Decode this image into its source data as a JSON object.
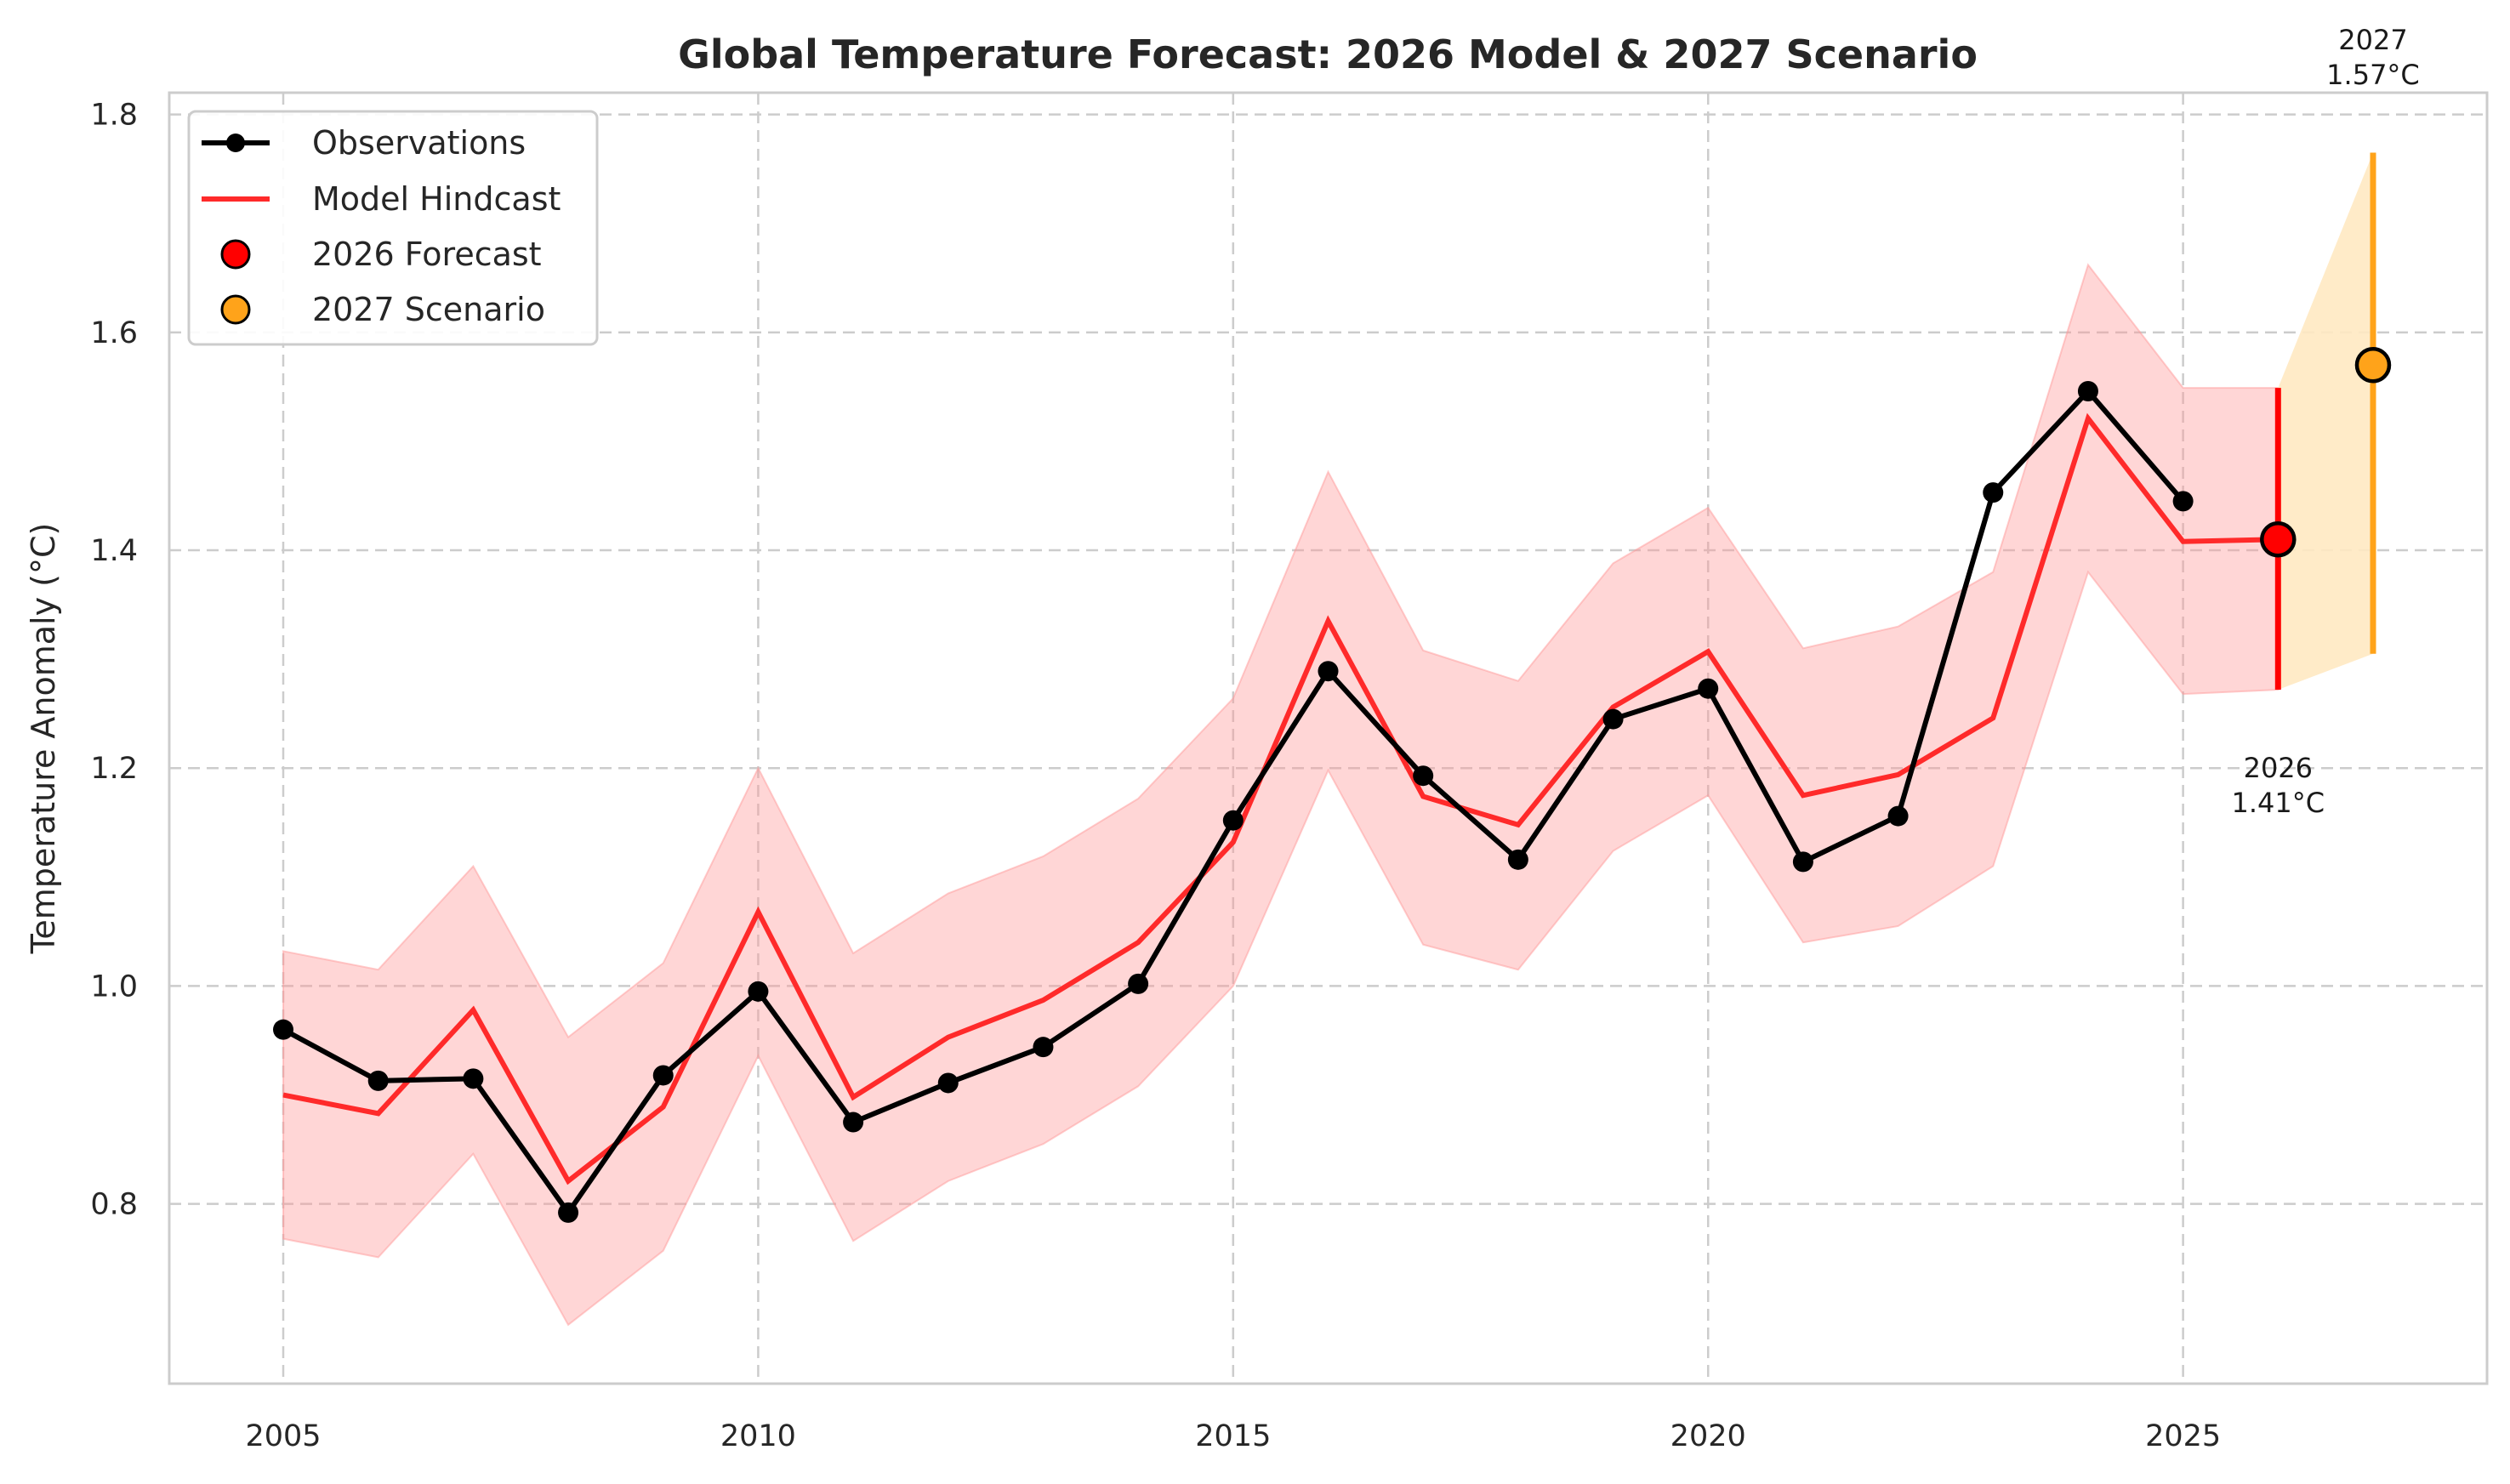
{
  "chart_data": {
    "type": "line",
    "title": "Global Temperature Forecast: 2026 Model & 2027 Scenario",
    "xlabel": "",
    "ylabel": "Temperature Anomaly (°C)",
    "xlim": [
      2003.8,
      2028.2
    ],
    "ylim": [
      0.635,
      1.82
    ],
    "xticks": [
      2005,
      2010,
      2015,
      2020,
      2025
    ],
    "yticks": [
      0.8,
      1.0,
      1.2,
      1.4,
      1.6,
      1.8
    ],
    "ytick_labels": [
      "0.8",
      "1.0",
      "1.2",
      "1.4",
      "1.6",
      "1.8"
    ],
    "grid": true,
    "legend_position": "upper-left",
    "x": [
      2005,
      2006,
      2007,
      2008,
      2009,
      2010,
      2011,
      2012,
      2013,
      2014,
      2015,
      2016,
      2017,
      2018,
      2019,
      2020,
      2021,
      2022,
      2023,
      2024,
      2025
    ],
    "series": [
      {
        "name": "Observations",
        "color": "#000000",
        "marker": "circle",
        "values": [
          0.96,
          0.913,
          0.915,
          0.792,
          0.918,
          0.995,
          0.875,
          0.911,
          0.944,
          1.002,
          1.152,
          1.289,
          1.193,
          1.116,
          1.245,
          1.273,
          1.114,
          1.156,
          1.453,
          1.546,
          1.445
        ]
      },
      {
        "name": "Model Hindcast",
        "color": "#ff2a2a",
        "x": [
          2005,
          2006,
          2007,
          2008,
          2009,
          2010,
          2011,
          2012,
          2013,
          2014,
          2015,
          2016,
          2017,
          2018,
          2019,
          2020,
          2021,
          2022,
          2023,
          2024,
          2025,
          2026
        ],
        "values": [
          0.9,
          0.883,
          0.978,
          0.821,
          0.889,
          1.068,
          0.898,
          0.953,
          0.987,
          1.04,
          1.132,
          1.335,
          1.174,
          1.148,
          1.256,
          1.307,
          1.175,
          1.194,
          1.246,
          1.521,
          1.408,
          1.41
        ],
        "band_lower": [
          0.768,
          0.751,
          0.846,
          0.689,
          0.757,
          0.936,
          0.766,
          0.821,
          0.855,
          0.908,
          1.0,
          1.198,
          1.038,
          1.015,
          1.124,
          1.175,
          1.04,
          1.055,
          1.11,
          1.38,
          1.268,
          1.272
        ],
        "band_upper": [
          1.032,
          1.015,
          1.11,
          0.953,
          1.021,
          1.2,
          1.03,
          1.085,
          1.119,
          1.172,
          1.264,
          1.472,
          1.308,
          1.28,
          1.388,
          1.439,
          1.31,
          1.33,
          1.38,
          1.662,
          1.549,
          1.549
        ],
        "band_color": "#ff9999"
      }
    ],
    "forecast_points": [
      {
        "name": "2026 Forecast",
        "x": 2026,
        "value": 1.41,
        "lower": 1.272,
        "upper": 1.549,
        "color": "#ff0000",
        "label_year": "2026",
        "label_value": "1.41°C"
      },
      {
        "name": "2027 Scenario",
        "x": 2027,
        "value": 1.57,
        "lower": 1.305,
        "upper": 1.765,
        "color": "#ffa31a",
        "band_color": "#ffe9c2",
        "label_year": "2027",
        "label_value": "1.57°C"
      }
    ],
    "legend": [
      "Observations",
      "Model Hindcast",
      "2026 Forecast",
      "2027 Scenario"
    ]
  }
}
